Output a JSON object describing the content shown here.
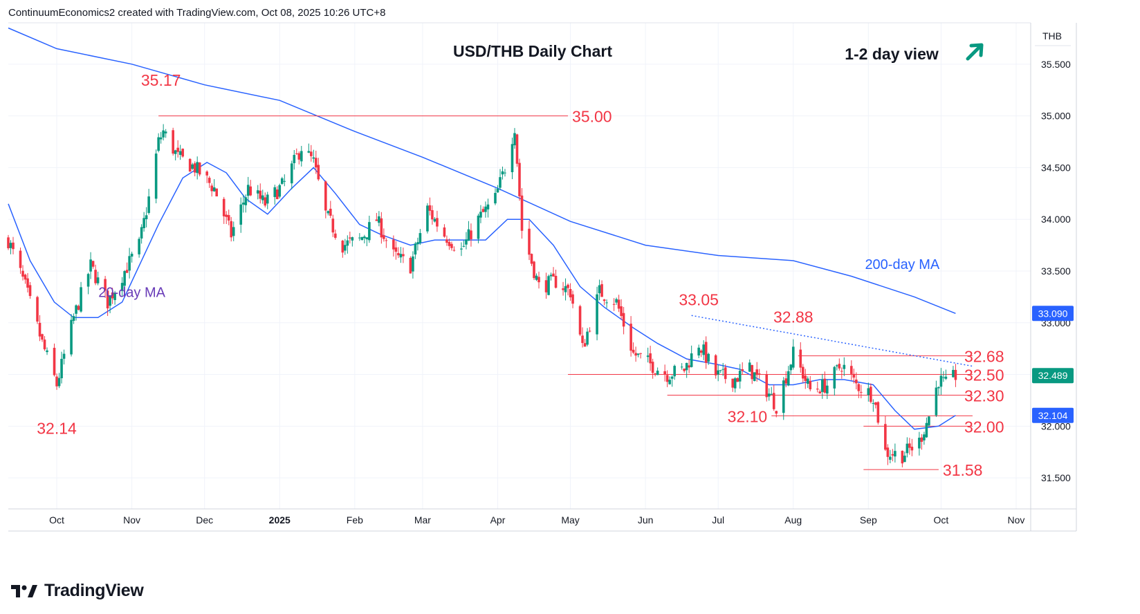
{
  "header": {
    "attribution": "ContinuumEconomics2 created with TradingView.com, Oct 08, 2025 10:26 UTC+8"
  },
  "brand": {
    "name": "TradingView",
    "logo_icon": "tradingview-logo-icon"
  },
  "colors": {
    "up": "#089981",
    "down": "#f23645",
    "ma20": "#2962ff",
    "ma200": "#2962ff",
    "level": "#f23645",
    "label_red": "#f23645",
    "ma20_label": "#673ab7",
    "ma200_label": "#2962ff",
    "arrow": "#089981",
    "grid": "#f0f3fa",
    "axis_text": "#131722"
  },
  "chart_data": {
    "type": "candlestick",
    "title": "USD/THB Daily Chart",
    "view_label": "1-2 day view",
    "view_icon": "arrow-up-right-icon",
    "currency_label": "THB",
    "y_ticks": [
      "35.500",
      "35.000",
      "34.500",
      "34.000",
      "33.500",
      "33.000",
      "32.500",
      "32.000",
      "31.500"
    ],
    "ylim": [
      31.2,
      35.9
    ],
    "x_ticks": [
      "Oct",
      "Nov",
      "Dec",
      "2025",
      "Feb",
      "Mar",
      "Apr",
      "May",
      "Jun",
      "Jul",
      "Aug",
      "Sep",
      "Oct",
      "Nov"
    ],
    "x_range": [
      "2024-09-11",
      "2025-11-07"
    ],
    "price_badges": [
      {
        "value": "33.090",
        "color": "#2962ff"
      },
      {
        "value": "32.489",
        "color": "#089981"
      },
      {
        "value": "32.104",
        "color": "#2962ff"
      }
    ],
    "levels": [
      {
        "label": "35.00",
        "value": 35.0,
        "from": "2024-11-12",
        "to": "2025-04-30"
      },
      {
        "label": "32.68",
        "value": 32.68,
        "from": "2025-08-03",
        "to": "2025-10-14"
      },
      {
        "label": "32.50",
        "value": 32.5,
        "from": "2025-04-30",
        "to": "2025-10-14"
      },
      {
        "label": "32.30",
        "value": 32.3,
        "from": "2025-06-10",
        "to": "2025-10-14"
      },
      {
        "label": "32.10",
        "value": 32.1,
        "from": "2025-07-23",
        "to": "2025-10-14"
      },
      {
        "label": "32.00",
        "value": 32.0,
        "from": "2025-08-30",
        "to": "2025-10-14"
      },
      {
        "label": "31.58",
        "value": 31.58,
        "from": "2025-08-30",
        "to": "2025-09-30"
      }
    ],
    "trendline": {
      "from_date": "2025-06-20",
      "from_value": 33.07,
      "to_date": "2025-10-14",
      "to_value": 32.58
    },
    "annotations": [
      {
        "text": "35.17",
        "date": "2024-11-13",
        "value": 35.17
      },
      {
        "text": "32.14",
        "date": "2024-10-01",
        "value": 32.14
      },
      {
        "text": "33.05",
        "date": "2025-06-23",
        "value": 33.05
      },
      {
        "text": "32.88",
        "date": "2025-08-01",
        "value": 32.88
      }
    ],
    "ma_labels": [
      {
        "text": "20-day MA",
        "date": "2024-11-01",
        "value": 33.25
      },
      {
        "text": "200-day MA",
        "date": "2025-09-15",
        "value": 33.52
      }
    ],
    "ohlc_anchors": [
      [
        "2024-09-11",
        33.8
      ],
      [
        "2024-09-18",
        33.35
      ],
      [
        "2024-09-25",
        32.8
      ],
      [
        "2024-10-01",
        32.4
      ],
      [
        "2024-10-08",
        33.05
      ],
      [
        "2024-10-15",
        33.55
      ],
      [
        "2024-10-22",
        33.2
      ],
      [
        "2024-10-29",
        33.5
      ],
      [
        "2024-11-04",
        33.75
      ],
      [
        "2024-11-08",
        34.2
      ],
      [
        "2024-11-12",
        34.75
      ],
      [
        "2024-11-14",
        34.85
      ],
      [
        "2024-11-20",
        34.6
      ],
      [
        "2024-11-27",
        34.5
      ],
      [
        "2024-12-05",
        34.3
      ],
      [
        "2024-12-12",
        33.85
      ],
      [
        "2024-12-19",
        34.3
      ],
      [
        "2024-12-26",
        34.15
      ],
      [
        "2025-01-03",
        34.35
      ],
      [
        "2025-01-10",
        34.7
      ],
      [
        "2025-01-15",
        34.55
      ],
      [
        "2025-01-20",
        34.05
      ],
      [
        "2025-01-27",
        33.75
      ],
      [
        "2025-02-03",
        33.8
      ],
      [
        "2025-02-10",
        34.0
      ],
      [
        "2025-02-17",
        33.65
      ],
      [
        "2025-02-24",
        33.55
      ],
      [
        "2025-03-03",
        34.1
      ],
      [
        "2025-03-10",
        33.85
      ],
      [
        "2025-03-17",
        33.7
      ],
      [
        "2025-03-24",
        34.0
      ],
      [
        "2025-03-31",
        34.2
      ],
      [
        "2025-04-04",
        34.5
      ],
      [
        "2025-04-08",
        34.9
      ],
      [
        "2025-04-11",
        33.9
      ],
      [
        "2025-04-18",
        33.35
      ],
      [
        "2025-04-25",
        33.4
      ],
      [
        "2025-05-01",
        33.3
      ],
      [
        "2025-05-06",
        32.75
      ],
      [
        "2025-05-13",
        33.3
      ],
      [
        "2025-05-20",
        33.2
      ],
      [
        "2025-05-27",
        32.7
      ],
      [
        "2025-06-03",
        32.6
      ],
      [
        "2025-06-10",
        32.5
      ],
      [
        "2025-06-17",
        32.55
      ],
      [
        "2025-06-23",
        32.8
      ],
      [
        "2025-06-30",
        32.5
      ],
      [
        "2025-07-07",
        32.45
      ],
      [
        "2025-07-14",
        32.55
      ],
      [
        "2025-07-21",
        32.35
      ],
      [
        "2025-07-25",
        32.2
      ],
      [
        "2025-08-01",
        32.7
      ],
      [
        "2025-08-08",
        32.35
      ],
      [
        "2025-08-15",
        32.4
      ],
      [
        "2025-08-21",
        32.6
      ],
      [
        "2025-08-27",
        32.4
      ],
      [
        "2025-09-03",
        32.3
      ],
      [
        "2025-09-08",
        31.75
      ],
      [
        "2025-09-15",
        31.72
      ],
      [
        "2025-09-22",
        31.85
      ],
      [
        "2025-09-26",
        32.1
      ],
      [
        "2025-09-30",
        32.45
      ],
      [
        "2025-10-03",
        32.4
      ],
      [
        "2025-10-07",
        32.49
      ]
    ],
    "ma20_points": [
      [
        "2024-09-11",
        34.15
      ],
      [
        "2024-09-20",
        33.6
      ],
      [
        "2024-09-30",
        33.2
      ],
      [
        "2024-10-08",
        33.05
      ],
      [
        "2024-10-18",
        33.05
      ],
      [
        "2024-10-28",
        33.2
      ],
      [
        "2024-11-04",
        33.55
      ],
      [
        "2024-11-12",
        33.95
      ],
      [
        "2024-11-22",
        34.4
      ],
      [
        "2024-12-02",
        34.55
      ],
      [
        "2024-12-10",
        34.45
      ],
      [
        "2024-12-18",
        34.2
      ],
      [
        "2024-12-27",
        34.05
      ],
      [
        "2025-01-06",
        34.3
      ],
      [
        "2025-01-15",
        34.5
      ],
      [
        "2025-01-24",
        34.25
      ],
      [
        "2025-02-03",
        33.95
      ],
      [
        "2025-02-12",
        33.85
      ],
      [
        "2025-02-24",
        33.75
      ],
      [
        "2025-03-06",
        33.8
      ],
      [
        "2025-03-17",
        33.8
      ],
      [
        "2025-03-27",
        33.8
      ],
      [
        "2025-04-05",
        34.0
      ],
      [
        "2025-04-14",
        34.0
      ],
      [
        "2025-04-24",
        33.75
      ],
      [
        "2025-05-05",
        33.35
      ],
      [
        "2025-05-15",
        33.15
      ],
      [
        "2025-05-27",
        32.95
      ],
      [
        "2025-06-06",
        32.8
      ],
      [
        "2025-06-18",
        32.65
      ],
      [
        "2025-06-30",
        32.6
      ],
      [
        "2025-07-10",
        32.55
      ],
      [
        "2025-07-22",
        32.4
      ],
      [
        "2025-08-01",
        32.4
      ],
      [
        "2025-08-12",
        32.45
      ],
      [
        "2025-08-22",
        32.45
      ],
      [
        "2025-09-03",
        32.4
      ],
      [
        "2025-09-12",
        32.15
      ],
      [
        "2025-09-20",
        31.97
      ],
      [
        "2025-09-30",
        32.0
      ],
      [
        "2025-10-07",
        32.104
      ]
    ],
    "ma200_points": [
      [
        "2024-09-11",
        35.85
      ],
      [
        "2024-10-01",
        35.65
      ],
      [
        "2024-11-01",
        35.5
      ],
      [
        "2024-12-01",
        35.3
      ],
      [
        "2025-01-01",
        35.15
      ],
      [
        "2025-02-01",
        34.85
      ],
      [
        "2025-03-01",
        34.6
      ],
      [
        "2025-04-01",
        34.3
      ],
      [
        "2025-05-01",
        33.98
      ],
      [
        "2025-06-01",
        33.75
      ],
      [
        "2025-07-01",
        33.65
      ],
      [
        "2025-08-01",
        33.6
      ],
      [
        "2025-08-25",
        33.45
      ],
      [
        "2025-09-20",
        33.25
      ],
      [
        "2025-10-07",
        33.09
      ]
    ]
  }
}
